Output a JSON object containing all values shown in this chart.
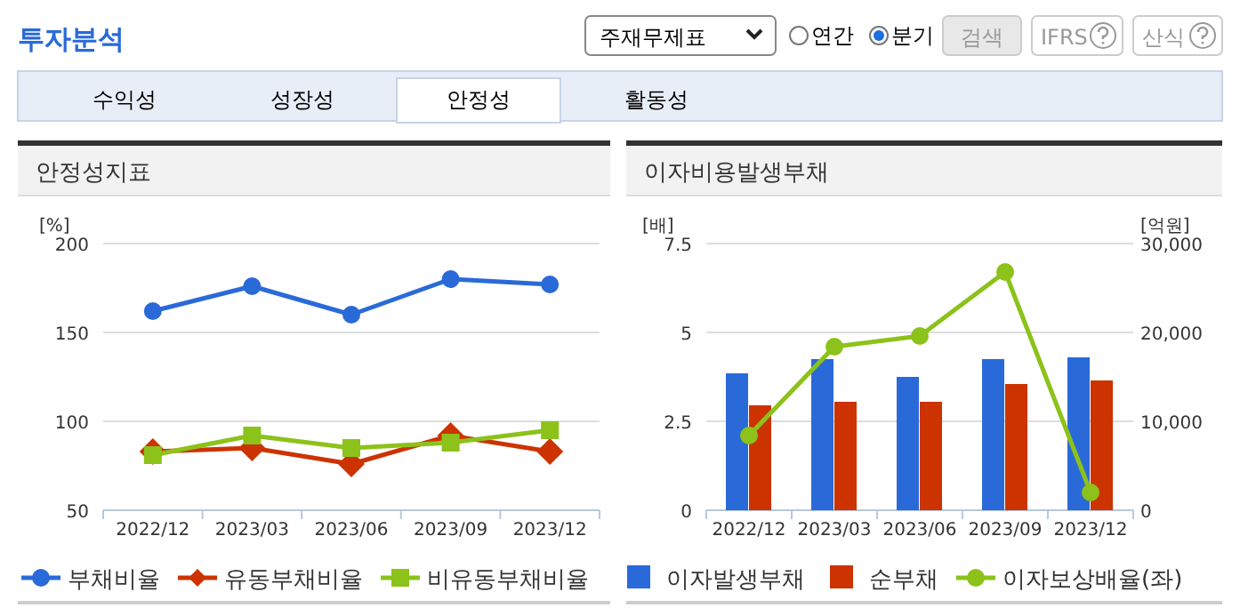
{
  "chart_data": [
    {
      "type": "other",
      "title": "투자분석",
      "annotations": [
        "주재무제표",
        "연간",
        "분기",
        "검색",
        "IFRS",
        "산식",
        "수익성",
        "성장성",
        "안정성",
        "활동성"
      ]
    },
    {
      "type": "line",
      "title": "안정성지표",
      "ylabel": "[%]",
      "categories": [
        "2022/12",
        "2023/03",
        "2023/06",
        "2023/09",
        "2023/12"
      ],
      "ylim": [
        50,
        200
      ],
      "yticks": [
        50,
        100,
        150,
        200
      ],
      "grid": "y",
      "legend": "bottom",
      "line_style": "solid",
      "series": [
        {
          "name": "부채비율",
          "color": "#2a6ad8",
          "marker": "circle",
          "values": [
            162,
            176,
            160,
            180,
            177
          ]
        },
        {
          "name": "유동부채비율",
          "color": "#cc3300",
          "marker": "diamond",
          "values": [
            83,
            85,
            76,
            92,
            83
          ]
        },
        {
          "name": "비유동부채비율",
          "color": "#8cc21a",
          "marker": "square",
          "values": [
            81,
            92,
            85,
            88,
            95
          ]
        }
      ]
    },
    {
      "type": "bar",
      "title": "이자비용발생부채",
      "ylabel": "[배]",
      "y2label": "[억원]",
      "categories": [
        "2022/12",
        "2023/03",
        "2023/06",
        "2023/09",
        "2023/12"
      ],
      "ylim": [
        0,
        7.5
      ],
      "yticks": [
        0,
        2.5,
        5,
        7.5
      ],
      "y2lim": [
        0,
        30000
      ],
      "y2ticks": [
        0,
        {
          "value": 10000,
          "label": "10,000"
        },
        {
          "value": 20000,
          "label": "20,000"
        },
        {
          "value": 30000,
          "label": "30,000"
        }
      ],
      "grid": "y",
      "legend": "bottom",
      "series": [
        {
          "name": "이자발생부채",
          "type": "bar",
          "axis": "y2",
          "color": "#2a6ad8",
          "values": [
            15400,
            17000,
            15000,
            17000,
            17200
          ]
        },
        {
          "name": "순부채",
          "type": "bar",
          "axis": "y2",
          "color": "#cc3300",
          "values": [
            11800,
            12200,
            12200,
            14200,
            14600
          ]
        },
        {
          "name": "이자보상배율(좌)",
          "type": "line",
          "marker": "circle",
          "color": "#8cc21a",
          "values": [
            2.1,
            4.6,
            4.9,
            6.7,
            0.5
          ]
        }
      ]
    }
  ]
}
